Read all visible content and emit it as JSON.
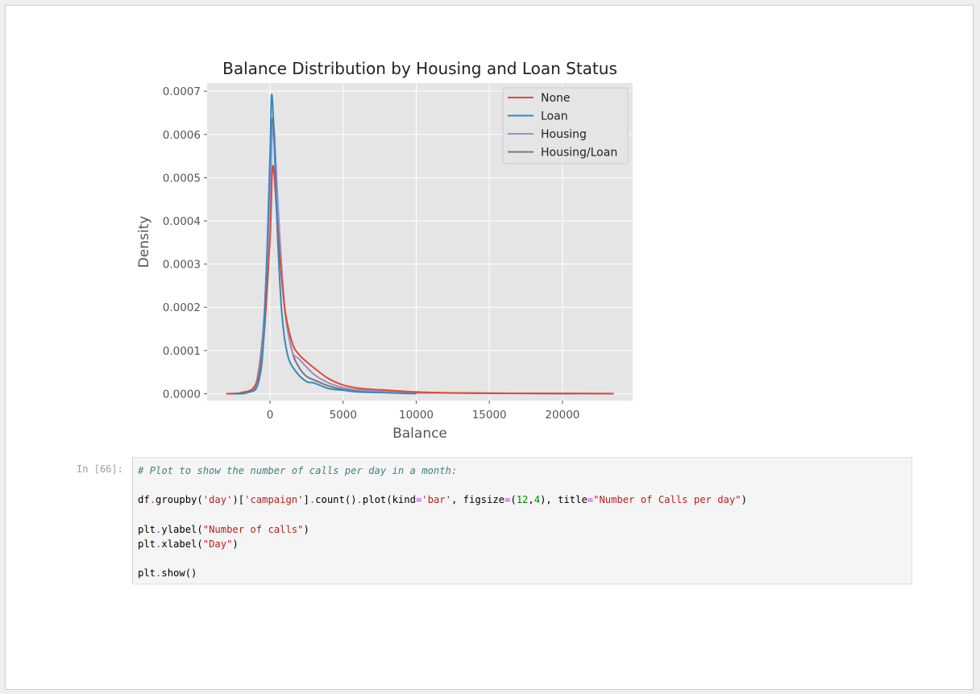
{
  "cell": {
    "prompt": "In [66]:",
    "code_lines": [
      "# Plot to show the number of calls per day in a month:",
      "",
      "df.groupby('day')['campaign'].count().plot(kind='bar', figsize=(12,4), title=\"Number of Calls per day\")",
      "",
      "plt.ylabel(\"Number of calls\")",
      "plt.xlabel(\"Day\")",
      "",
      "plt.show()"
    ]
  },
  "chart_data": {
    "type": "line",
    "title": "Balance Distribution by Housing and Loan Status",
    "xlabel": "Balance",
    "ylabel": "Density",
    "xlim": [
      -4300,
      24800
    ],
    "ylim": [
      -1.6e-05,
      0.000719
    ],
    "xticks": [
      0,
      5000,
      10000,
      15000,
      20000
    ],
    "xtick_labels": [
      "0",
      "5000",
      "10000",
      "15000",
      "20000"
    ],
    "yticks": [
      0,
      0.0001,
      0.0002,
      0.0003,
      0.0004,
      0.0005,
      0.0006,
      0.0007
    ],
    "ytick_labels": [
      "0.0000",
      "0.0001",
      "0.0002",
      "0.0003",
      "0.0004",
      "0.0005",
      "0.0006",
      "0.0007"
    ],
    "grid": true,
    "legend_position": "top-right",
    "series": [
      {
        "name": "None",
        "color": "#e24a33",
        "x": [
          -3000,
          -2000,
          -1000,
          -500,
          0,
          150,
          300,
          600,
          1000,
          1500,
          2000,
          3000,
          4000,
          5000,
          6000,
          7000,
          8000,
          10000,
          12000,
          15000,
          20000,
          23500
        ],
        "y": [
          0,
          2e-06,
          2e-05,
          0.0001,
          0.00036,
          0.000515,
          0.0005,
          0.00035,
          0.0002,
          0.00012,
          9e-05,
          6e-05,
          3.5e-05,
          2e-05,
          1.3e-05,
          1e-05,
          8e-06,
          4e-06,
          2e-06,
          1e-06,
          5e-07,
          0
        ]
      },
      {
        "name": "Loan",
        "color": "#348abd",
        "x": [
          -2500,
          -1500,
          -800,
          -400,
          0,
          100,
          250,
          500,
          800,
          1200,
          1800,
          2500,
          3000,
          4000,
          5000,
          6000,
          8000,
          10000
        ],
        "y": [
          0,
          3e-06,
          2.5e-05,
          0.00015,
          0.00055,
          0.00069,
          0.00062,
          0.00038,
          0.00019,
          9e-05,
          5e-05,
          2.8e-05,
          2.5e-05,
          1.2e-05,
          8e-06,
          4e-06,
          2e-06,
          0
        ]
      },
      {
        "name": "Housing",
        "color": "#988ed5",
        "x": [
          -2800,
          -1800,
          -1000,
          -500,
          0,
          150,
          300,
          600,
          1000,
          1500,
          2000,
          3000,
          4000,
          5000,
          6000,
          8000,
          10000,
          12000,
          15000,
          20000,
          23500
        ],
        "y": [
          0,
          3e-06,
          2e-05,
          0.00012,
          0.00045,
          0.0006,
          0.00058,
          0.0004,
          0.0002,
          0.0001,
          8e-05,
          4.5e-05,
          2.5e-05,
          1.4e-05,
          9e-06,
          5e-06,
          3e-06,
          2e-06,
          1e-06,
          5e-07,
          0
        ]
      },
      {
        "name": "Housing/Loan",
        "color": "#777777",
        "x": [
          -2500,
          -1500,
          -900,
          -400,
          0,
          150,
          300,
          600,
          1000,
          1500,
          2000,
          2500,
          3000,
          4000,
          5000,
          6000,
          8000,
          10000,
          15000,
          21000
        ],
        "y": [
          0,
          3e-06,
          3e-05,
          0.00018,
          0.0005,
          0.00063,
          0.0006,
          0.0004,
          0.0002,
          0.0001,
          6e-05,
          4e-05,
          3.2e-05,
          1.8e-05,
          1e-05,
          6e-06,
          3e-06,
          2e-06,
          1e-06,
          0
        ]
      }
    ]
  }
}
